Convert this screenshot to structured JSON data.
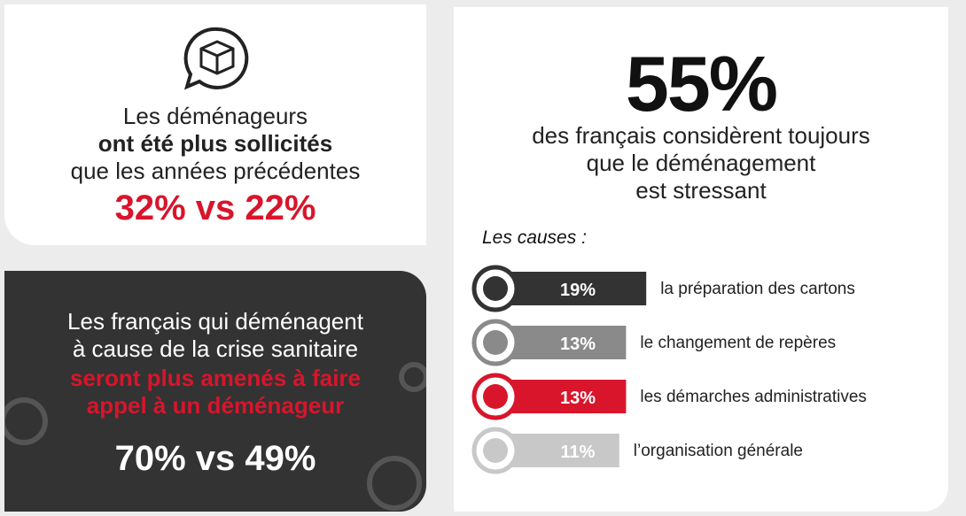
{
  "card_movers": {
    "line1": "Les déménageurs",
    "line2": "ont été plus sollicités",
    "line3": "que les années précédentes",
    "figure": "32% vs 22%"
  },
  "card_crisis": {
    "line1": "Les français qui déménagent",
    "line2": "à cause de la crise sanitaire",
    "line3": "seront plus amenés à faire",
    "line4": "appel à un déménageur",
    "figure": "70% vs 49%"
  },
  "card_stress": {
    "figure": "55%",
    "line1": "des français considèrent toujours",
    "line2": "que le déménagement",
    "line3": "est stressant",
    "causes_title": "Les causes :",
    "causes": [
      {
        "label": "la préparation des cartons",
        "value": 19,
        "value_label": "19%",
        "color": "#333333"
      },
      {
        "label": "le changement de repères",
        "value": 13,
        "value_label": "13%",
        "color": "#8a8a8a"
      },
      {
        "label": "les démarches administratives",
        "value": 13,
        "value_label": "13%",
        "color": "#d8152b"
      },
      {
        "label": "l’organisation générale",
        "value": 11,
        "value_label": "11%",
        "color": "#c8c8c8"
      }
    ]
  }
}
